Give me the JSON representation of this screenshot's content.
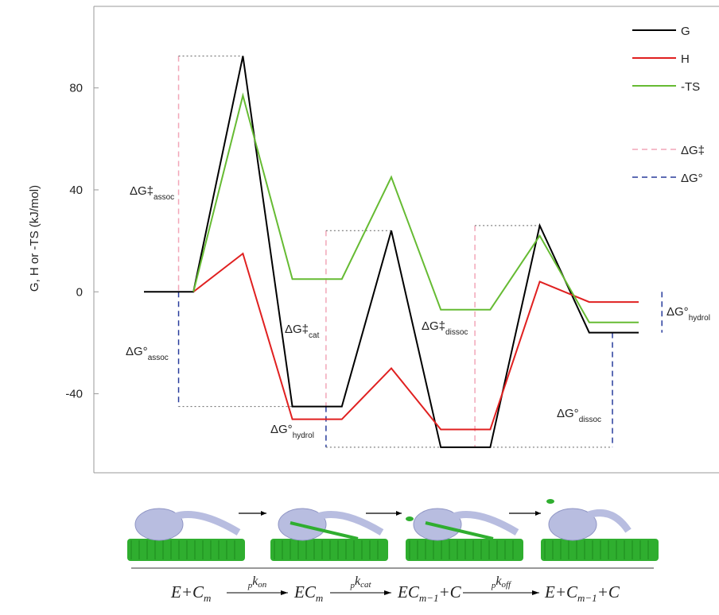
{
  "chart_data": {
    "type": "line",
    "ylabel": "G, H or -TS (kJ/mol)",
    "categories": [
      null,
      null,
      null,
      null,
      null,
      null,
      null,
      null,
      null,
      null,
      null
    ],
    "ylim": [
      -71,
      112
    ],
    "yticks": [
      -40,
      0,
      40,
      80
    ],
    "series": [
      {
        "name": "G",
        "color": "#000000",
        "values": [
          0,
          0,
          92.5,
          -45,
          -45,
          24,
          -61,
          -61,
          26,
          -16,
          -16
        ]
      },
      {
        "name": "H",
        "color": "#e02020",
        "values": [
          null,
          0,
          15,
          -50,
          -50,
          -30,
          -54,
          -54,
          4,
          -4,
          -4
        ]
      },
      {
        "name": "-TS",
        "color": "#66bb33",
        "values": [
          null,
          0,
          77,
          5,
          5,
          45,
          -7,
          -7,
          22,
          -12,
          -12
        ]
      }
    ],
    "guides": [
      {
        "name": "ΔG‡",
        "color": "#f2a6b8"
      },
      {
        "name": "ΔG°",
        "color": "#283c9c"
      }
    ],
    "annotations": [
      {
        "text": "ΔG‡",
        "sub": "assoc"
      },
      {
        "text": "ΔG°",
        "sub": "assoc"
      },
      {
        "text": "ΔG‡",
        "sub": "cat"
      },
      {
        "text": "ΔG°",
        "sub": "hydrol"
      },
      {
        "text": "ΔG‡",
        "sub": "dissoc"
      },
      {
        "text": "ΔG°",
        "sub": "dissoc"
      },
      {
        "text": "ΔG°",
        "sub": "hydrol"
      }
    ]
  },
  "scheme": {
    "states": [
      [
        {
          "t": "E+C"
        },
        {
          "s": "m"
        }
      ],
      [
        {
          "t": "EC"
        },
        {
          "s": "m"
        }
      ],
      [
        {
          "t": "EC"
        },
        {
          "s": "m−1"
        },
        {
          "t": "+C"
        }
      ],
      [
        {
          "t": "E+C"
        },
        {
          "s": "m−1"
        },
        {
          "t": "+C"
        }
      ]
    ],
    "rates": [
      [
        "p",
        "k",
        "on"
      ],
      [
        "p",
        "k",
        "cat"
      ],
      [
        "p",
        "k",
        "off"
      ]
    ]
  }
}
